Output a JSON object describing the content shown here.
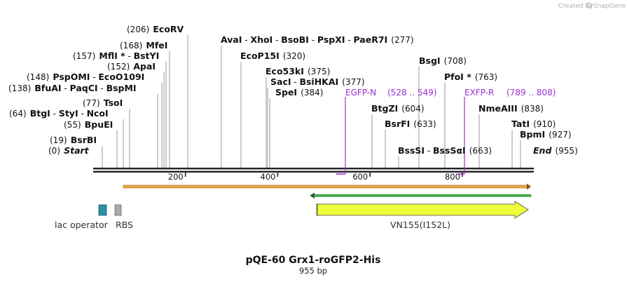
{
  "watermark": {
    "created_by": "Created by",
    "brand": "SnapGene"
  },
  "plasmid": {
    "name": "pQE-60 Grx1-roGFP2-His",
    "length_label": "955 bp"
  },
  "axis": {
    "length": 955,
    "ticks": [
      {
        "label": "200",
        "value": 200
      },
      {
        "label": "400",
        "value": 400
      },
      {
        "label": "600",
        "value": 600
      },
      {
        "label": "800",
        "value": 800
      }
    ]
  },
  "sites": [
    {
      "label_id": "start",
      "pos": "(0)",
      "names": [
        {
          "t": "Start",
          "italic": true
        }
      ],
      "cut": 0
    },
    {
      "label_id": "bsrbi",
      "pos": "(19)",
      "names": [
        {
          "t": "BsrBI"
        }
      ],
      "cut": 19
    },
    {
      "label_id": "bpuei",
      "pos": "(55)",
      "names": [
        {
          "t": "BpuEI"
        }
      ],
      "cut": 55
    },
    {
      "label_id": "btgi",
      "pos": "(64)",
      "names": [
        {
          "t": "BtgI"
        },
        {
          "t": "StyI"
        },
        {
          "t": "NcoI"
        }
      ],
      "cut": 64
    },
    {
      "label_id": "tsoi",
      "pos": "(77)",
      "names": [
        {
          "t": "TsoI"
        }
      ],
      "cut": 77
    },
    {
      "label_id": "bfuai",
      "pos": "(138)",
      "names": [
        {
          "t": "BfuAI"
        },
        {
          "t": "PaqCI"
        },
        {
          "t": "BspMI"
        }
      ],
      "cut": 138
    },
    {
      "label_id": "psp",
      "pos": "(148)",
      "names": [
        {
          "t": "PspOMI"
        },
        {
          "t": "EcoO109I"
        }
      ],
      "cut": 148
    },
    {
      "label_id": "apai",
      "pos": "(152)",
      "names": [
        {
          "t": "ApaI"
        }
      ],
      "cut": 152
    },
    {
      "label_id": "mfli",
      "pos": "(157)",
      "names": [
        {
          "t": "MflI *"
        },
        {
          "t": "BstYI"
        }
      ],
      "cut": 157
    },
    {
      "label_id": "mfei",
      "pos": "(168)",
      "names": [
        {
          "t": "MfeI"
        }
      ],
      "cut": 168
    },
    {
      "label_id": "ecorv",
      "pos": "(206)",
      "names": [
        {
          "t": "EcoRV"
        }
      ],
      "cut": 206
    },
    {
      "label_id": "avai",
      "pos": "(277)",
      "names": [
        {
          "t": "AvaI"
        },
        {
          "t": "XhoI"
        },
        {
          "t": "BsoBI"
        },
        {
          "t": "PspXI"
        },
        {
          "t": "PaeR7I"
        }
      ],
      "cut": 277
    },
    {
      "label_id": "ecop15i",
      "pos": "(320)",
      "names": [
        {
          "t": "EcoP15I"
        }
      ],
      "cut": 320
    },
    {
      "label_id": "eco53ki",
      "pos": "(375)",
      "names": [
        {
          "t": "Eco53kI"
        }
      ],
      "cut": 375
    },
    {
      "label_id": "saci",
      "pos": "(377)",
      "names": [
        {
          "t": "SacI"
        },
        {
          "t": "BsiHKAI"
        }
      ],
      "cut": 377
    },
    {
      "label_id": "spei",
      "pos": "(384)",
      "names": [
        {
          "t": "SpeI"
        }
      ],
      "cut": 384
    },
    {
      "label_id": "btgzi",
      "pos": "(604)",
      "names": [
        {
          "t": "BtgZI"
        }
      ],
      "cut": 604
    },
    {
      "label_id": "bsrfi",
      "pos": "(633)",
      "names": [
        {
          "t": "BsrFI"
        }
      ],
      "cut": 633
    },
    {
      "label_id": "bsssi",
      "pos": "(663)",
      "names": [
        {
          "t": "BssSI"
        },
        {
          "t": "BssSαI"
        }
      ],
      "cut": 663
    },
    {
      "label_id": "bsgi",
      "pos": "(708)",
      "names": [
        {
          "t": "BsgI"
        }
      ],
      "cut": 708
    },
    {
      "label_id": "pfoi",
      "pos": "(763)",
      "names": [
        {
          "t": "PfoI *"
        }
      ],
      "cut": 763
    },
    {
      "label_id": "nmeaiii",
      "pos": "(838)",
      "names": [
        {
          "t": "NmeAIII"
        }
      ],
      "cut": 838
    },
    {
      "label_id": "tati",
      "pos": "(910)",
      "names": [
        {
          "t": "TatI"
        }
      ],
      "cut": 910
    },
    {
      "label_id": "bpmi",
      "pos": "(927)",
      "names": [
        {
          "t": "BpmI"
        }
      ],
      "cut": 927
    },
    {
      "label_id": "end",
      "pos": "(955)",
      "names": [
        {
          "t": "End",
          "italic": true
        }
      ],
      "cut": 955
    }
  ],
  "primers": [
    {
      "name": "EGFP-N",
      "range": "(528 .. 549)",
      "start": 528,
      "end": 549
    },
    {
      "name": "EXFP-R",
      "range": "(789 .. 808)",
      "start": 789,
      "end": 808
    }
  ],
  "features": [
    {
      "name": "lac operator",
      "color": "#2e8fa5"
    },
    {
      "name": "RBS",
      "color": "#a8a8a8"
    },
    {
      "name": "VN155(I152L)",
      "color": "#eeff3a",
      "start": 485,
      "end": 955
    }
  ],
  "colors": {
    "backbone": "#222222",
    "orange_bar": "#e8a64a",
    "green_arrow": "#33a02c",
    "primer": "#9b30d0"
  }
}
